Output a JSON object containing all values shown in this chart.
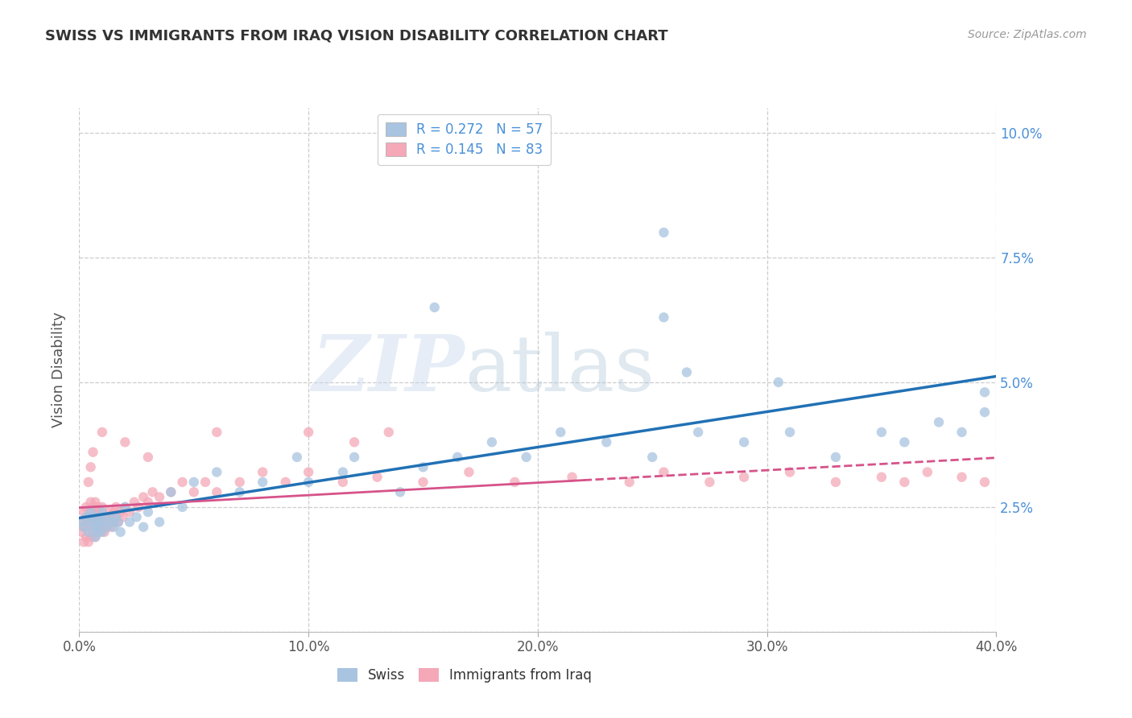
{
  "title": "SWISS VS IMMIGRANTS FROM IRAQ VISION DISABILITY CORRELATION CHART",
  "source": "Source: ZipAtlas.com",
  "ylabel": "Vision Disability",
  "xlim": [
    0.0,
    0.4
  ],
  "ylim": [
    0.0,
    0.105
  ],
  "xticks": [
    0.0,
    0.1,
    0.2,
    0.3,
    0.4
  ],
  "xticklabels": [
    "0.0%",
    "10.0%",
    "20.0%",
    "30.0%",
    "40.0%"
  ],
  "yticks": [
    0.0,
    0.025,
    0.05,
    0.075,
    0.1
  ],
  "yticklabels": [
    "",
    "2.5%",
    "5.0%",
    "7.5%",
    "10.0%"
  ],
  "legend1_label": "Swiss",
  "legend2_label": "Immigrants from Iraq",
  "watermark_zip": "ZIP",
  "watermark_atlas": "atlas",
  "blue_R": "0.272",
  "blue_N": "57",
  "pink_R": "0.145",
  "pink_N": "83",
  "blue_color": "#a8c4e0",
  "pink_color": "#f4a8b8",
  "blue_line_color": "#2171b5",
  "pink_line_color": "#d6538a",
  "background_color": "#ffffff",
  "grid_color": "#cccccc",
  "swiss_x": [
    0.001,
    0.002,
    0.003,
    0.004,
    0.005,
    0.005,
    0.006,
    0.006,
    0.007,
    0.007,
    0.008,
    0.008,
    0.009,
    0.009,
    0.01,
    0.01,
    0.011,
    0.012,
    0.013,
    0.014,
    0.015,
    0.016,
    0.017,
    0.018,
    0.02,
    0.022,
    0.025,
    0.028,
    0.03,
    0.035,
    0.04,
    0.045,
    0.05,
    0.06,
    0.07,
    0.08,
    0.095,
    0.1,
    0.115,
    0.12,
    0.14,
    0.15,
    0.165,
    0.18,
    0.195,
    0.21,
    0.23,
    0.25,
    0.27,
    0.29,
    0.31,
    0.33,
    0.35,
    0.36,
    0.375,
    0.385,
    0.395
  ],
  "swiss_y": [
    0.022,
    0.021,
    0.023,
    0.02,
    0.024,
    0.022,
    0.021,
    0.023,
    0.019,
    0.022,
    0.02,
    0.021,
    0.023,
    0.022,
    0.02,
    0.024,
    0.022,
    0.021,
    0.023,
    0.022,
    0.021,
    0.023,
    0.022,
    0.02,
    0.025,
    0.022,
    0.023,
    0.021,
    0.024,
    0.022,
    0.028,
    0.025,
    0.03,
    0.032,
    0.028,
    0.03,
    0.035,
    0.03,
    0.032,
    0.035,
    0.028,
    0.033,
    0.035,
    0.038,
    0.035,
    0.04,
    0.038,
    0.035,
    0.04,
    0.038,
    0.04,
    0.035,
    0.04,
    0.038,
    0.042,
    0.04,
    0.044
  ],
  "swiss_outliers_x": [
    0.155,
    0.255,
    0.255,
    0.265,
    0.305,
    0.395
  ],
  "swiss_outliers_y": [
    0.065,
    0.08,
    0.063,
    0.052,
    0.05,
    0.048
  ],
  "iraq_x": [
    0.001,
    0.001,
    0.002,
    0.002,
    0.002,
    0.003,
    0.003,
    0.003,
    0.004,
    0.004,
    0.004,
    0.005,
    0.005,
    0.005,
    0.005,
    0.006,
    0.006,
    0.006,
    0.007,
    0.007,
    0.007,
    0.007,
    0.008,
    0.008,
    0.008,
    0.009,
    0.009,
    0.009,
    0.01,
    0.01,
    0.01,
    0.011,
    0.011,
    0.012,
    0.012,
    0.013,
    0.013,
    0.014,
    0.014,
    0.015,
    0.015,
    0.016,
    0.016,
    0.017,
    0.018,
    0.019,
    0.02,
    0.022,
    0.024,
    0.026,
    0.028,
    0.03,
    0.032,
    0.035,
    0.04,
    0.045,
    0.05,
    0.055,
    0.06,
    0.07,
    0.08,
    0.09,
    0.1,
    0.115,
    0.13,
    0.15,
    0.17,
    0.19,
    0.215,
    0.24,
    0.255,
    0.275,
    0.29,
    0.31,
    0.33,
    0.35,
    0.36,
    0.37,
    0.385,
    0.395,
    0.01,
    0.02,
    0.03
  ],
  "iraq_y": [
    0.02,
    0.022,
    0.018,
    0.021,
    0.024,
    0.019,
    0.022,
    0.025,
    0.018,
    0.021,
    0.023,
    0.019,
    0.022,
    0.024,
    0.026,
    0.02,
    0.023,
    0.025,
    0.019,
    0.022,
    0.024,
    0.026,
    0.021,
    0.023,
    0.025,
    0.02,
    0.022,
    0.024,
    0.021,
    0.023,
    0.025,
    0.02,
    0.022,
    0.021,
    0.023,
    0.022,
    0.024,
    0.021,
    0.023,
    0.022,
    0.024,
    0.023,
    0.025,
    0.022,
    0.024,
    0.023,
    0.025,
    0.024,
    0.026,
    0.025,
    0.027,
    0.026,
    0.028,
    0.027,
    0.028,
    0.03,
    0.028,
    0.03,
    0.028,
    0.03,
    0.032,
    0.03,
    0.032,
    0.03,
    0.031,
    0.03,
    0.032,
    0.03,
    0.031,
    0.03,
    0.032,
    0.03,
    0.031,
    0.032,
    0.03,
    0.031,
    0.03,
    0.032,
    0.031,
    0.03,
    0.04,
    0.038,
    0.035
  ],
  "iraq_outliers_x": [
    0.004,
    0.005,
    0.006,
    0.06,
    0.1,
    0.12,
    0.135
  ],
  "iraq_outliers_y": [
    0.03,
    0.033,
    0.036,
    0.04,
    0.04,
    0.038,
    0.04
  ]
}
